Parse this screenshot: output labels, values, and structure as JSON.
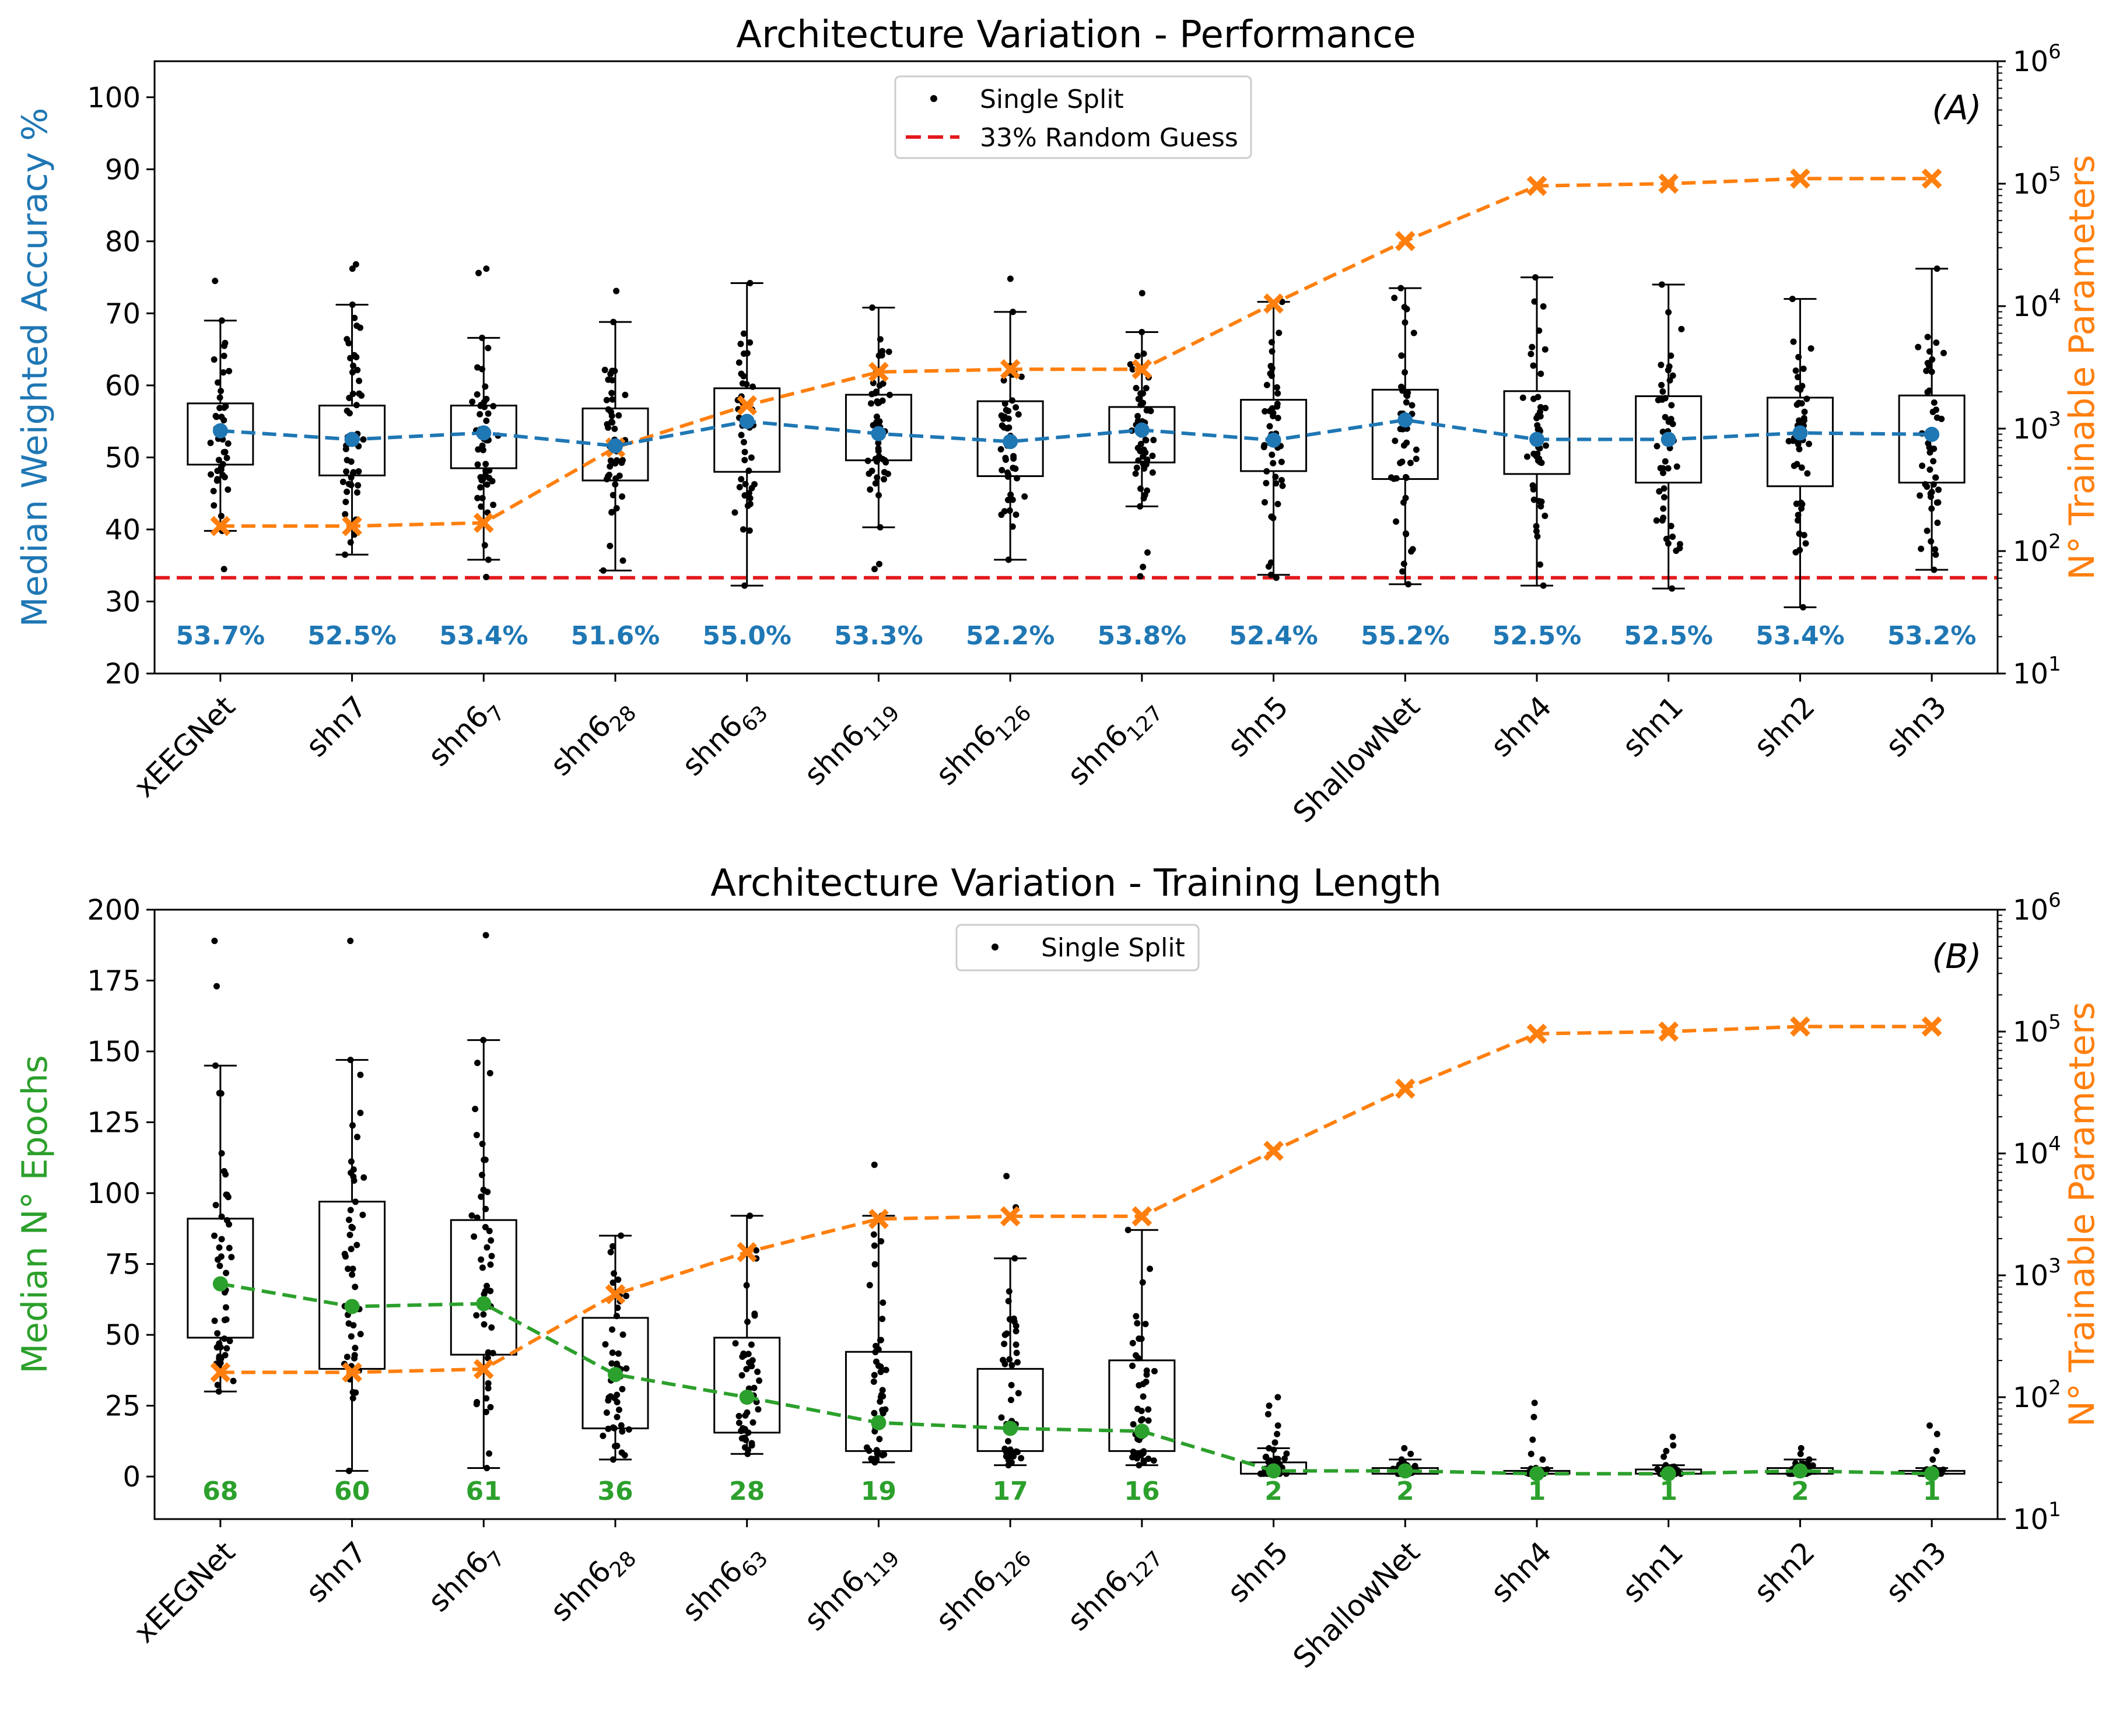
{
  "chart_data": [
    {
      "type": "box",
      "panel_label": "(A)",
      "title": "Architecture Variation - Performance",
      "ylabel": "Median Weighted Accuracy %",
      "y2label": "N° Trainable Parameters",
      "ylim": [
        20,
        105
      ],
      "yticks": [
        20,
        30,
        40,
        50,
        60,
        70,
        80,
        90,
        100
      ],
      "y2lim_log10": [
        1,
        6
      ],
      "y2ticks": [
        "10",
        "10",
        "10",
        "10",
        "10",
        "10"
      ],
      "y2exps": [
        "1",
        "2",
        "3",
        "4",
        "5",
        "6"
      ],
      "legend": {
        "scatter": "Single Split",
        "line": "33% Random Guess",
        "placement": "top-center"
      },
      "random_guess": 33.3,
      "categories": [
        {
          "base": "xEEGNet",
          "sub": ""
        },
        {
          "base": "shn7",
          "sub": ""
        },
        {
          "base": "shn6",
          "sub": "7"
        },
        {
          "base": "shn6",
          "sub": "28"
        },
        {
          "base": "shn6",
          "sub": "63"
        },
        {
          "base": "shn6",
          "sub": "119"
        },
        {
          "base": "shn6",
          "sub": "126"
        },
        {
          "base": "shn6",
          "sub": "127"
        },
        {
          "base": "shn5",
          "sub": ""
        },
        {
          "base": "ShallowNet",
          "sub": ""
        },
        {
          "base": "shn4",
          "sub": ""
        },
        {
          "base": "shn1",
          "sub": ""
        },
        {
          "base": "shn2",
          "sub": ""
        },
        {
          "base": "shn3",
          "sub": ""
        }
      ],
      "medians": [
        53.7,
        52.5,
        53.4,
        51.6,
        55.0,
        53.3,
        52.2,
        53.8,
        52.4,
        55.2,
        52.5,
        52.5,
        53.4,
        53.2
      ],
      "median_labels": [
        "53.7%",
        "52.5%",
        "53.4%",
        "51.6%",
        "55.0%",
        "53.3%",
        "52.2%",
        "53.8%",
        "52.4%",
        "55.2%",
        "52.5%",
        "52.5%",
        "53.4%",
        "53.2%"
      ],
      "q1": [
        49,
        47.5,
        48.5,
        46.8,
        48,
        49.6,
        47.4,
        49.3,
        48.1,
        47,
        47.7,
        46.5,
        46,
        46.5
      ],
      "q3": [
        57.5,
        57.2,
        57.2,
        56.8,
        59.6,
        58.7,
        57.8,
        57,
        58,
        59.4,
        59.2,
        58.5,
        58.3,
        58.6
      ],
      "whisker_low": [
        39.8,
        36.5,
        35.8,
        34.3,
        32.2,
        40.3,
        35.8,
        43.2,
        33.7,
        32.4,
        32.2,
        31.8,
        29.2,
        34.4
      ],
      "whisker_high": [
        69,
        71.2,
        66.6,
        68.8,
        74.2,
        70.8,
        70.2,
        67.4,
        71.6,
        73.5,
        75,
        74,
        72,
        76.2
      ],
      "flier_points": [
        [
          0,
          74.5
        ],
        [
          0,
          34.5
        ],
        [
          1,
          76.2
        ],
        [
          1,
          76.8
        ],
        [
          2,
          75.6
        ],
        [
          2,
          76.2
        ],
        [
          2,
          33.4
        ],
        [
          3,
          73.1
        ],
        [
          5,
          35.2
        ],
        [
          5,
          34.5
        ],
        [
          6,
          74.8
        ],
        [
          7,
          72.8
        ],
        [
          7,
          36.8
        ],
        [
          7,
          34.8
        ],
        [
          7,
          33.5
        ],
        [
          8,
          33.3
        ],
        [
          8,
          35.4
        ],
        [
          13,
          36.5
        ]
      ],
      "trainable_params": [
        160,
        160,
        170,
        700,
        1550,
        2900,
        3050,
        3050,
        10500,
        34000,
        96000,
        100000,
        110000,
        110000
      ],
      "colors": {
        "median_line": "#1f77b4",
        "params_line": "#ff7f0e",
        "random": "#e31a1c",
        "label": "#1f77b4",
        "points": "#000000"
      }
    },
    {
      "type": "box",
      "panel_label": "(B)",
      "title": "Architecture Variation - Training Length",
      "ylabel": "Median  N° Epochs",
      "y2label": "N° Trainable Parameters",
      "ylim": [
        -15,
        200
      ],
      "yticks": [
        0,
        25,
        50,
        75,
        100,
        125,
        150,
        175,
        200
      ],
      "y2lim_log10": [
        1,
        6
      ],
      "y2ticks": [
        "10",
        "10",
        "10",
        "10",
        "10",
        "10"
      ],
      "y2exps": [
        "1",
        "2",
        "3",
        "4",
        "5",
        "6"
      ],
      "legend": {
        "scatter": "Single Split",
        "placement": "top-center"
      },
      "categories": [
        {
          "base": "xEEGNet",
          "sub": ""
        },
        {
          "base": "shn7",
          "sub": ""
        },
        {
          "base": "shn6",
          "sub": "7"
        },
        {
          "base": "shn6",
          "sub": "28"
        },
        {
          "base": "shn6",
          "sub": "63"
        },
        {
          "base": "shn6",
          "sub": "119"
        },
        {
          "base": "shn6",
          "sub": "126"
        },
        {
          "base": "shn6",
          "sub": "127"
        },
        {
          "base": "shn5",
          "sub": ""
        },
        {
          "base": "ShallowNet",
          "sub": ""
        },
        {
          "base": "shn4",
          "sub": ""
        },
        {
          "base": "shn1",
          "sub": ""
        },
        {
          "base": "shn2",
          "sub": ""
        },
        {
          "base": "shn3",
          "sub": ""
        }
      ],
      "medians": [
        68,
        60,
        61,
        36,
        28,
        19,
        17,
        16,
        2,
        2,
        1,
        1,
        2,
        1
      ],
      "median_labels": [
        "68",
        "60",
        "61",
        "36",
        "28",
        "19",
        "17",
        "16",
        "2",
        "2",
        "1",
        "1",
        "2",
        "1"
      ],
      "q1": [
        49,
        38,
        43,
        17,
        15.5,
        9,
        9,
        9,
        1,
        1,
        1,
        1,
        1,
        1
      ],
      "q3": [
        91,
        97,
        90.5,
        56,
        49,
        44,
        38,
        41,
        5,
        3,
        2,
        2.5,
        3,
        2
      ],
      "whisker_low": [
        30,
        2,
        3,
        6,
        8,
        5,
        4,
        4,
        1,
        1,
        1,
        1,
        1,
        1
      ],
      "whisker_high": [
        145,
        147,
        154,
        85,
        92,
        92,
        77,
        87,
        10,
        6,
        3,
        4,
        6,
        3
      ],
      "flier_points": [
        [
          0,
          189
        ],
        [
          0,
          173
        ],
        [
          1,
          189
        ],
        [
          2,
          191
        ],
        [
          5,
          110
        ],
        [
          6,
          106
        ],
        [
          6,
          95
        ],
        [
          8,
          28
        ],
        [
          8,
          25
        ],
        [
          8,
          22
        ],
        [
          8,
          18
        ],
        [
          8,
          15
        ],
        [
          8,
          12
        ],
        [
          9,
          10
        ],
        [
          9,
          8
        ],
        [
          10,
          26
        ],
        [
          10,
          21
        ],
        [
          10,
          13
        ],
        [
          10,
          8
        ],
        [
          10,
          6
        ],
        [
          11,
          14
        ],
        [
          11,
          11
        ],
        [
          11,
          9
        ],
        [
          11,
          7
        ],
        [
          12,
          10
        ],
        [
          12,
          8
        ],
        [
          13,
          18
        ],
        [
          13,
          15
        ],
        [
          13,
          9
        ],
        [
          13,
          6
        ]
      ],
      "trainable_params": [
        160,
        160,
        170,
        700,
        1550,
        2900,
        3050,
        3050,
        10500,
        34000,
        96000,
        100000,
        110000,
        110000
      ],
      "colors": {
        "median_line": "#2ca02c",
        "params_line": "#ff7f0e",
        "label": "#2ca02c",
        "points": "#000000"
      }
    }
  ]
}
